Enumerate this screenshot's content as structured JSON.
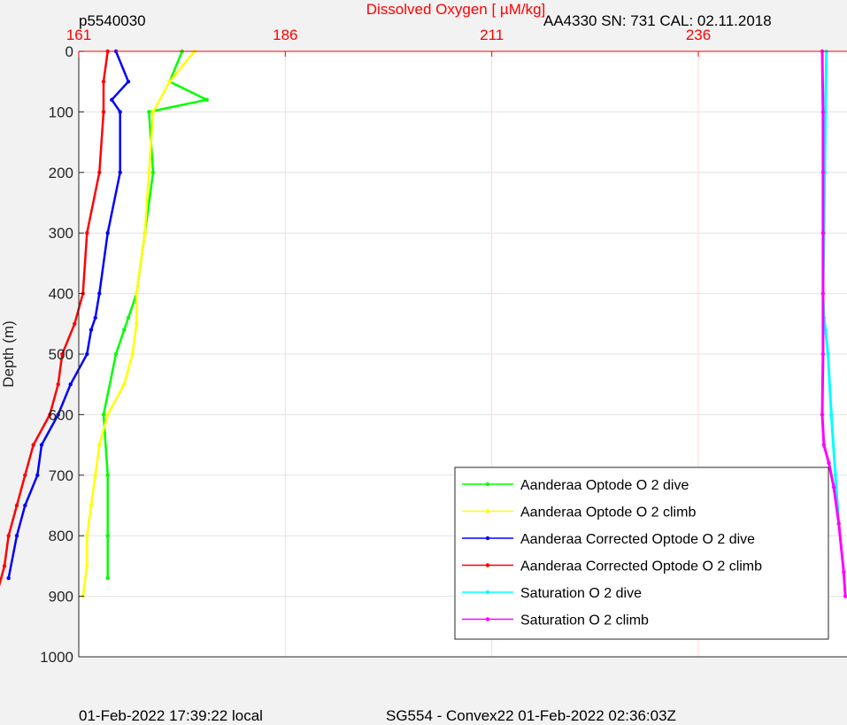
{
  "header": {
    "left_label": "p5540030",
    "right_label": "AA4330   SN: 731  CAL: 02.11.2018"
  },
  "footer": {
    "left": "01-Feb-2022 17:39:22 local",
    "center": "SG554 - Convex22 01-Feb-2022 02:36:03Z"
  },
  "chart_data": {
    "type": "scatter",
    "title": "",
    "xlabel": "Dissolved Oxygen [  µM/kg]",
    "ylabel": "Depth (m)",
    "xlim": [
      161,
      254
    ],
    "ylim": [
      0,
      1000
    ],
    "y_reversed": true,
    "x_axis_position": "top",
    "xticks": [
      161,
      186,
      211,
      236
    ],
    "yticks": [
      0,
      100,
      200,
      300,
      400,
      500,
      600,
      700,
      800,
      900,
      1000
    ],
    "grid": true,
    "legend_position": "bottom-right",
    "colors": {
      "axis_x": "#ff0000",
      "grid": "#e3e3e3",
      "background": "#f2f2f2"
    },
    "series": [
      {
        "name": "Aanderaa Optode O  2 dive",
        "color": "#00ff00",
        "x": [
          173.5,
          172.0,
          176.5,
          169.5,
          170.0,
          169.0,
          168.0,
          167.0,
          166.5,
          165.5,
          164.0,
          164.5,
          164.5,
          164.5
        ],
        "y": [
          0,
          50,
          80,
          100,
          200,
          300,
          400,
          440,
          460,
          500,
          600,
          700,
          800,
          870
        ]
      },
      {
        "name": "Aanderaa Optode O  2 climb",
        "color": "#ffff00",
        "x": [
          175.0,
          172.0,
          170.0,
          169.5,
          169.0,
          168.0,
          168.0,
          167.5,
          166.5,
          164.5,
          163.5,
          163.0,
          162.5,
          162.0,
          162.0,
          161.5
        ],
        "y": [
          0,
          50,
          100,
          200,
          300,
          400,
          450,
          500,
          550,
          600,
          650,
          700,
          750,
          800,
          850,
          900
        ]
      },
      {
        "name": "Aanderaa Corrected Optode O  2 dive",
        "color": "#0000ff",
        "x": [
          165.5,
          167.0,
          165.0,
          166.0,
          166.0,
          164.5,
          163.5,
          163.0,
          162.5,
          162.0,
          160.0,
          158.5,
          156.5,
          156.0,
          154.5,
          153.5,
          152.5
        ],
        "y": [
          0,
          50,
          80,
          100,
          200,
          300,
          400,
          440,
          460,
          500,
          550,
          600,
          650,
          700,
          750,
          800,
          870
        ]
      },
      {
        "name": "Aanderaa Corrected Optode O  2 climb",
        "color": "#ff0000",
        "x": [
          164.5,
          164.0,
          164.0,
          163.5,
          162.0,
          161.5,
          160.5,
          159.0,
          158.5,
          157.5,
          155.5,
          154.5,
          153.5,
          152.5,
          152.0,
          151.0
        ],
        "y": [
          0,
          50,
          100,
          200,
          300,
          400,
          450,
          500,
          550,
          600,
          650,
          700,
          750,
          800,
          850,
          900
        ]
      },
      {
        "name": "Saturation O  2 dive",
        "color": "#00ffff",
        "x": [
          251.5,
          251.4,
          251.3,
          251.2,
          251.1,
          251.2,
          251.4,
          251.7,
          252.1,
          252.6,
          253.0
        ],
        "y": [
          0,
          100,
          200,
          300,
          400,
          440,
          460,
          500,
          600,
          700,
          780
        ]
      },
      {
        "name": "Saturation O  2 climb",
        "color": "#ff00ff",
        "x": [
          251.0,
          251.1,
          251.1,
          251.1,
          251.1,
          251.1,
          251.0,
          251.2,
          251.8,
          252.4,
          253.0,
          253.6,
          253.8
        ],
        "y": [
          0,
          100,
          200,
          300,
          400,
          500,
          600,
          650,
          680,
          720,
          780,
          860,
          900
        ]
      }
    ]
  }
}
